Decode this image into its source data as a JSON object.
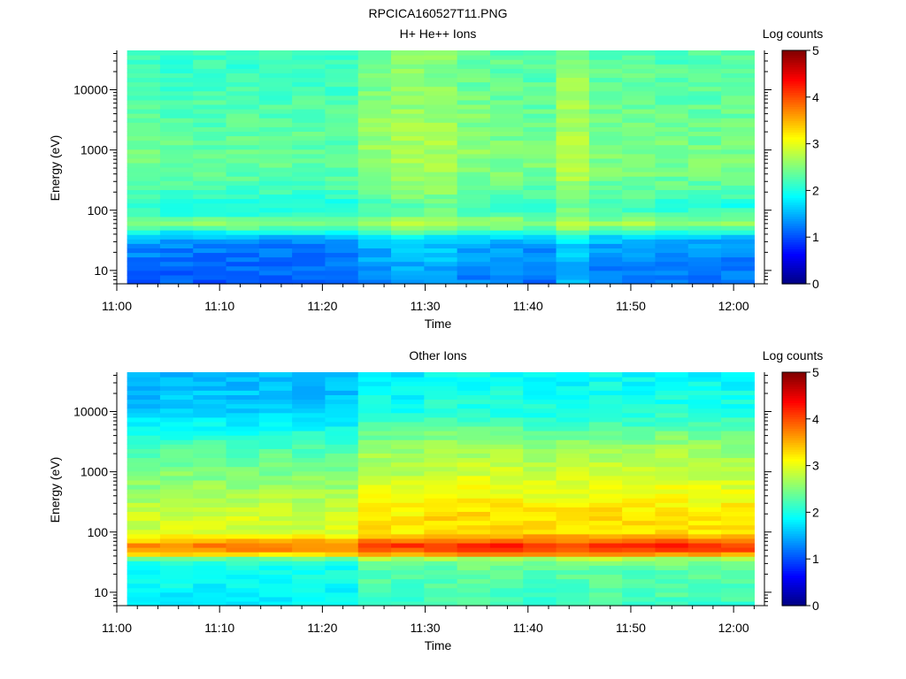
{
  "figure_title": "RPCICA160527T11.PNG",
  "chart_data": [
    {
      "type": "heatmap",
      "title": "H+ He++ Ions",
      "xlabel": "Time",
      "ylabel": "Energy (eV)",
      "x_ticks": [
        "11:00",
        "11:10",
        "11:20",
        "11:30",
        "11:40",
        "11:50",
        "12:00"
      ],
      "xlim": [
        "11:00",
        "12:03"
      ],
      "y_scale": "log",
      "y_ticks": [
        10,
        100,
        1000,
        10000
      ],
      "ylim": [
        6,
        45000
      ],
      "x_bins": [
        "11:01",
        "11:04",
        "11:08",
        "11:11",
        "11:14",
        "11:17",
        "11:21",
        "11:24",
        "11:27",
        "11:30",
        "11:33",
        "11:37",
        "11:40",
        "11:43",
        "11:46",
        "11:49",
        "11:53",
        "11:56",
        "11:59"
      ],
      "time_range": [
        "11:01",
        "12:02"
      ],
      "energy_profile": [
        {
          "energy": 6,
          "log_counts": 1.1
        },
        {
          "energy": 12,
          "log_counts": 1.2
        },
        {
          "energy": 25,
          "log_counts": 1.3
        },
        {
          "energy": 35,
          "log_counts": 1.5
        },
        {
          "energy": 45,
          "log_counts": 2.0
        },
        {
          "energy": 55,
          "log_counts": 2.5
        },
        {
          "energy": 65,
          "log_counts": 2.6
        },
        {
          "energy": 80,
          "log_counts": 2.2
        },
        {
          "energy": 120,
          "log_counts": 2.0
        },
        {
          "energy": 200,
          "log_counts": 2.25
        },
        {
          "energy": 500,
          "log_counts": 2.4
        },
        {
          "energy": 1000,
          "log_counts": 2.4
        },
        {
          "energy": 3000,
          "log_counts": 2.35
        },
        {
          "energy": 10000,
          "log_counts": 2.25
        },
        {
          "energy": 45000,
          "log_counts": 2.2
        }
      ],
      "time_modulation": [
        0,
        -0.05,
        -0.05,
        -0.05,
        -0.05,
        -0.05,
        -0.05,
        0.2,
        0.3,
        0.3,
        0.15,
        0.1,
        0.05,
        0.35,
        0.1,
        0.1,
        0.05,
        0.05,
        0.05
      ],
      "colorbar": {
        "label": "Log counts",
        "min": 0,
        "max": 5,
        "ticks": [
          0,
          1,
          2,
          3,
          4,
          5
        ],
        "colormap": "jet"
      }
    },
    {
      "type": "heatmap",
      "title": "Other Ions",
      "xlabel": "Time",
      "ylabel": "Energy (eV)",
      "x_ticks": [
        "11:00",
        "11:10",
        "11:20",
        "11:30",
        "11:40",
        "11:50",
        "12:00"
      ],
      "xlim": [
        "11:00",
        "12:03"
      ],
      "y_scale": "log",
      "y_ticks": [
        10,
        100,
        1000,
        10000
      ],
      "ylim": [
        6,
        45000
      ],
      "x_bins": [
        "11:01",
        "11:04",
        "11:08",
        "11:11",
        "11:14",
        "11:17",
        "11:21",
        "11:24",
        "11:27",
        "11:30",
        "11:33",
        "11:37",
        "11:40",
        "11:43",
        "11:46",
        "11:49",
        "11:53",
        "11:56",
        "11:59"
      ],
      "time_range": [
        "11:01",
        "12:02"
      ],
      "energy_profile": [
        {
          "energy": 6,
          "log_counts": 1.9
        },
        {
          "energy": 15,
          "log_counts": 2.0
        },
        {
          "energy": 30,
          "log_counts": 2.1
        },
        {
          "energy": 38,
          "log_counts": 2.5
        },
        {
          "energy": 45,
          "log_counts": 3.6
        },
        {
          "energy": 60,
          "log_counts": 3.9
        },
        {
          "energy": 75,
          "log_counts": 3.5
        },
        {
          "energy": 100,
          "log_counts": 3.0
        },
        {
          "energy": 200,
          "log_counts": 3.0
        },
        {
          "energy": 500,
          "log_counts": 2.75
        },
        {
          "energy": 1000,
          "log_counts": 2.6
        },
        {
          "energy": 3000,
          "log_counts": 2.3
        },
        {
          "energy": 10000,
          "log_counts": 1.75
        },
        {
          "energy": 45000,
          "log_counts": 1.6
        }
      ],
      "time_modulation": [
        -0.15,
        -0.1,
        -0.1,
        -0.1,
        -0.1,
        -0.1,
        -0.1,
        0.25,
        0.2,
        0.3,
        0.3,
        0.3,
        0.25,
        0.25,
        0.3,
        0.25,
        0.3,
        0.25,
        0.25
      ],
      "colorbar": {
        "label": "Log counts",
        "min": 0,
        "max": 5,
        "ticks": [
          0,
          1,
          2,
          3,
          4,
          5
        ],
        "colormap": "jet"
      }
    }
  ]
}
